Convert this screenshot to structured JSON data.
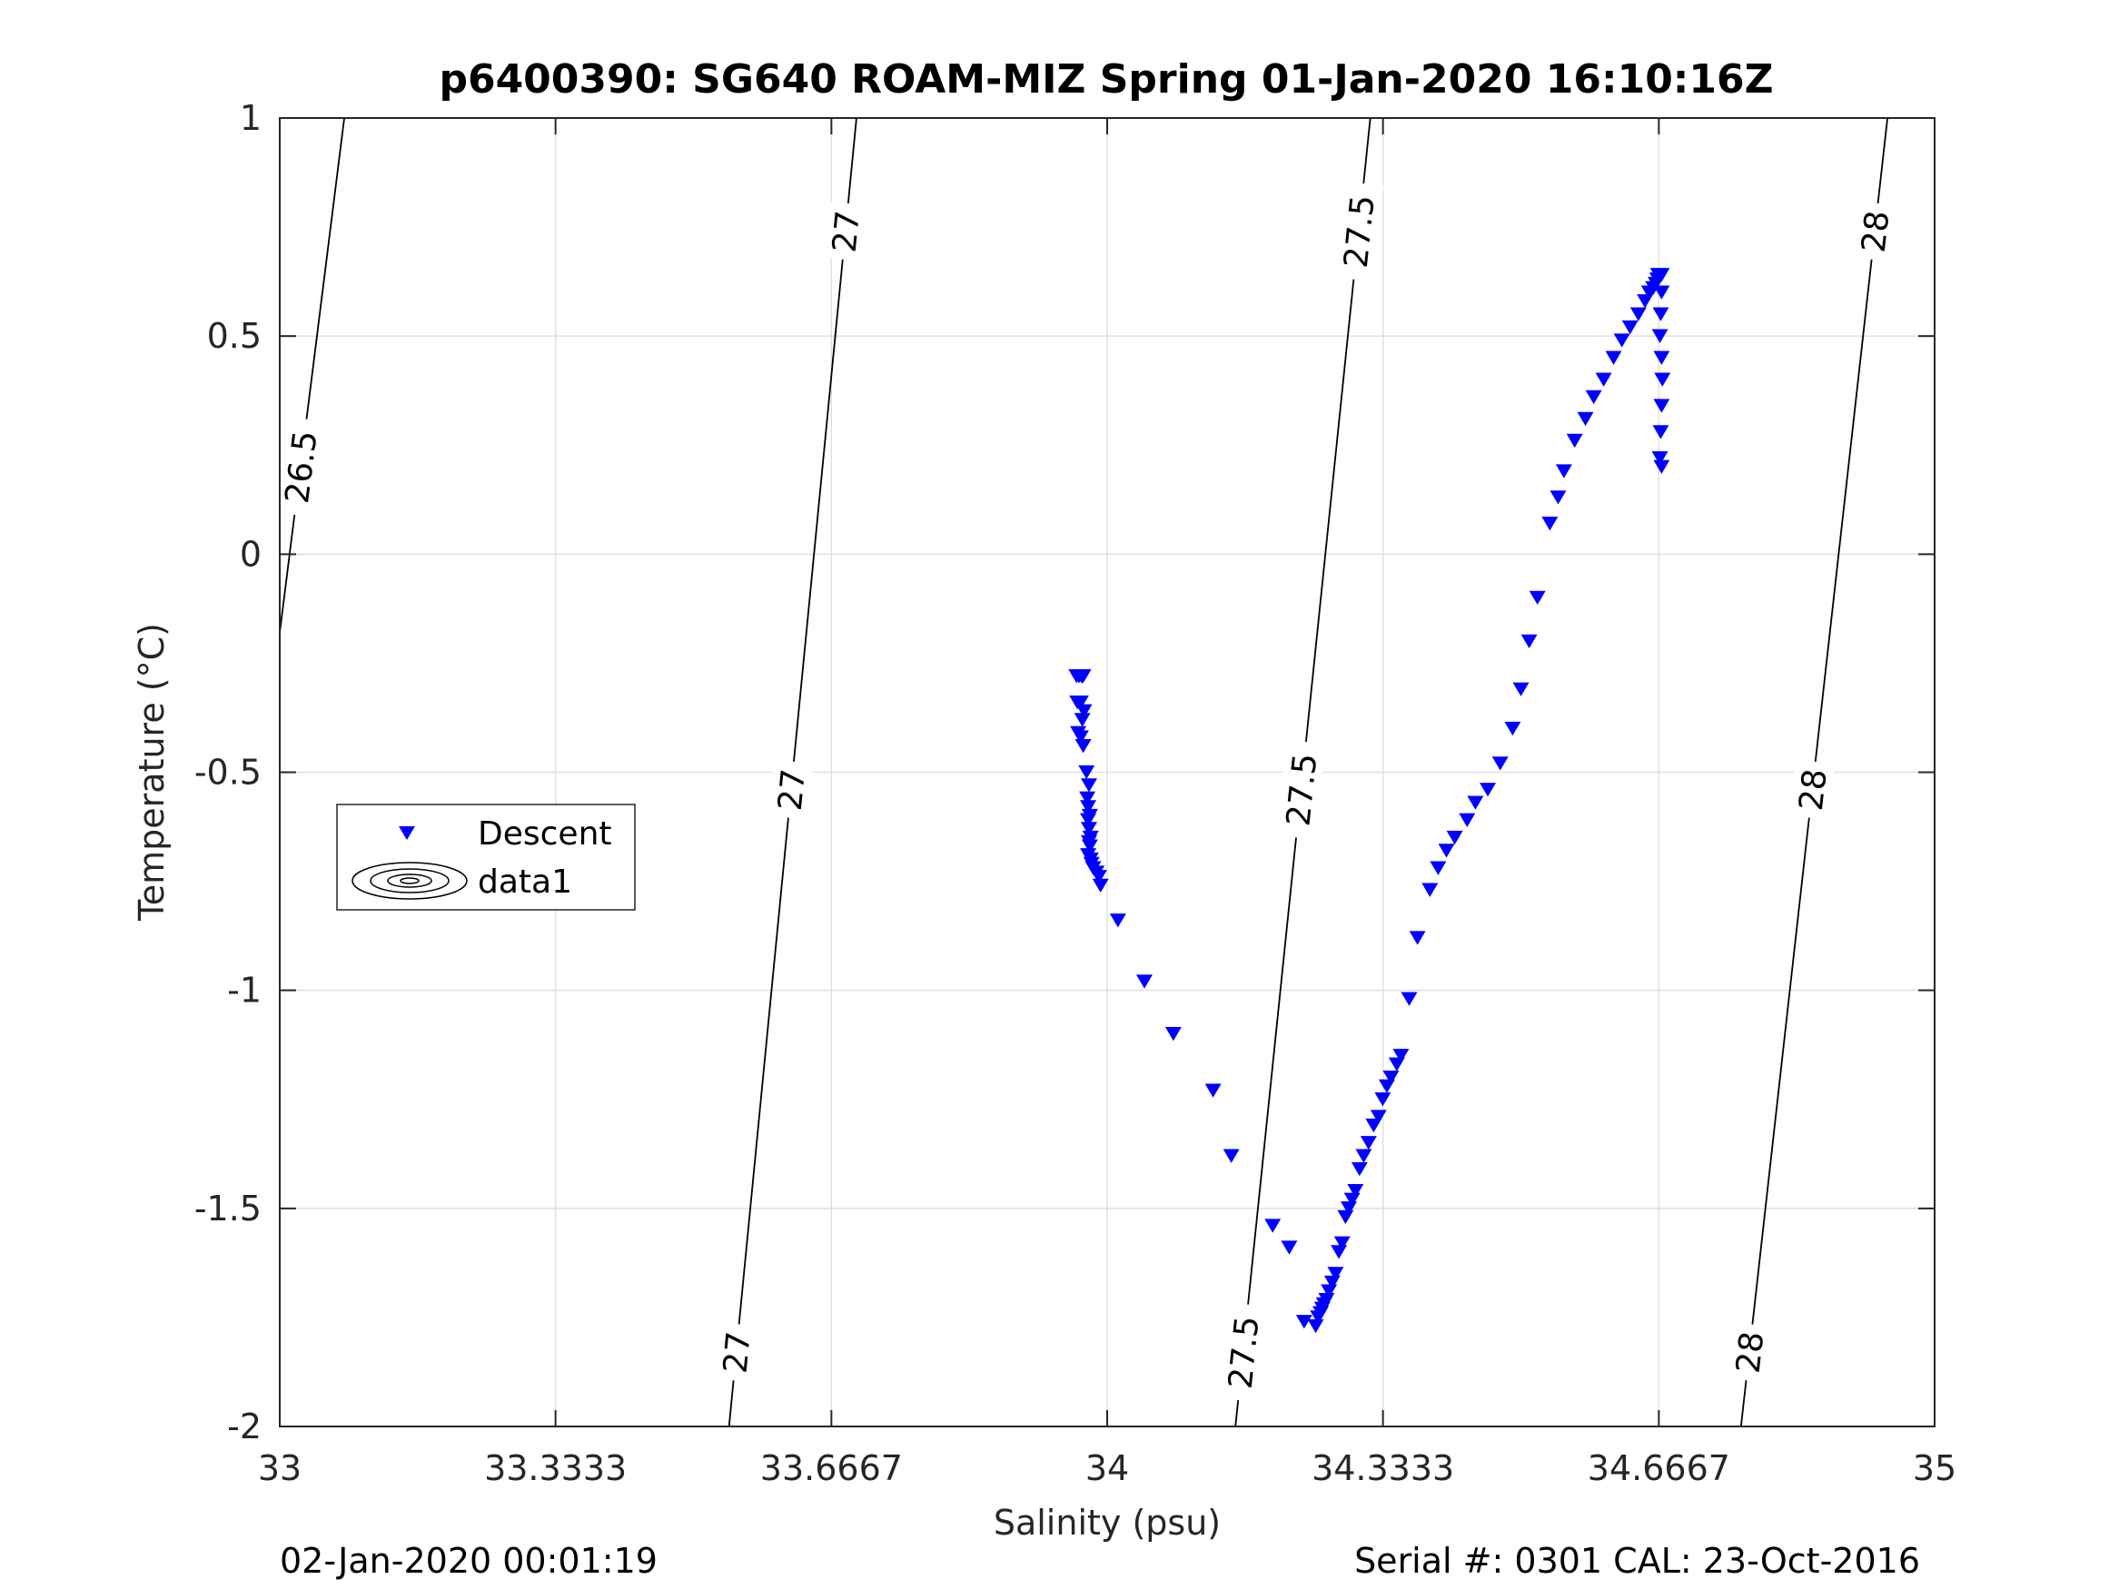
{
  "chart_data": {
    "type": "scatter",
    "title": "p6400390: SG640 ROAM-MIZ Spring 01-Jan-2020 16:10:16Z",
    "xlabel": "Salinity (psu)",
    "ylabel": "Temperature (°C)",
    "xlim": [
      33,
      35
    ],
    "ylim": [
      -2,
      1
    ],
    "xticks": [
      33,
      33.3333,
      33.6667,
      34,
      34.3333,
      34.6667,
      35
    ],
    "xtick_labels": [
      "33",
      "33.3333",
      "33.6667",
      "34",
      "34.3333",
      "34.6667",
      "35"
    ],
    "yticks": [
      -2,
      -1.5,
      -1,
      -0.5,
      0,
      0.5,
      1
    ],
    "ytick_labels": [
      "-2",
      "-1.5",
      "-1",
      "-0.5",
      "0",
      "0.5",
      "1"
    ],
    "grid": true,
    "legend_position": "left-middle",
    "legend": [
      "Descent",
      "data1"
    ],
    "footer_left": "02-Jan-2020 00:01:19",
    "footer_right": "Serial #: 0301  CAL: 23-Oct-2016",
    "series": [
      {
        "name": "Descent",
        "marker": "triangle-down",
        "color": "#0000ff",
        "x": [
          33.963,
          33.966,
          33.969,
          33.97,
          33.971,
          33.964,
          33.968,
          33.972,
          33.97,
          33.965,
          33.968,
          33.971,
          33.975,
          33.978,
          33.976,
          33.977,
          33.979,
          33.977,
          33.978,
          33.98,
          33.978,
          33.979,
          33.977,
          33.98,
          33.981,
          33.983,
          33.987,
          33.99,
          33.992,
          34.013,
          34.045,
          34.08,
          34.128,
          34.15,
          34.2,
          34.22,
          34.238,
          34.252,
          34.255,
          34.258,
          34.26,
          34.262,
          34.265,
          34.268,
          34.272,
          34.276,
          34.28,
          34.284,
          34.288,
          34.292,
          34.296,
          34.3,
          34.305,
          34.31,
          34.316,
          34.322,
          34.328,
          34.333,
          34.338,
          34.343,
          34.35,
          34.355,
          34.365,
          34.375,
          34.39,
          34.4,
          34.41,
          34.42,
          34.435,
          34.445,
          34.46,
          34.475,
          34.49,
          34.5,
          34.51,
          34.52,
          34.535,
          34.545,
          34.552,
          34.565,
          34.578,
          34.588,
          34.6,
          34.612,
          34.622,
          34.632,
          34.642,
          34.65,
          34.655,
          34.66,
          34.663,
          34.665,
          34.666,
          34.668,
          34.67,
          34.67,
          34.669,
          34.668,
          34.67,
          34.671,
          34.67,
          34.669,
          34.668,
          34.67
        ],
        "y": [
          -0.28,
          -0.28,
          -0.28,
          -0.28,
          -0.28,
          -0.34,
          -0.34,
          -0.36,
          -0.38,
          -0.41,
          -0.42,
          -0.44,
          -0.5,
          -0.53,
          -0.56,
          -0.58,
          -0.6,
          -0.61,
          -0.63,
          -0.65,
          -0.66,
          -0.67,
          -0.69,
          -0.7,
          -0.71,
          -0.72,
          -0.73,
          -0.74,
          -0.76,
          -0.84,
          -0.98,
          -1.1,
          -1.23,
          -1.38,
          -1.54,
          -1.59,
          -1.76,
          -1.77,
          -1.75,
          -1.74,
          -1.73,
          -1.72,
          -1.71,
          -1.69,
          -1.67,
          -1.65,
          -1.6,
          -1.58,
          -1.52,
          -1.5,
          -1.48,
          -1.46,
          -1.41,
          -1.38,
          -1.35,
          -1.31,
          -1.29,
          -1.25,
          -1.22,
          -1.2,
          -1.17,
          -1.15,
          -1.02,
          -0.88,
          -0.77,
          -0.72,
          -0.68,
          -0.65,
          -0.61,
          -0.57,
          -0.54,
          -0.48,
          -0.4,
          -0.31,
          -0.2,
          -0.1,
          0.07,
          0.13,
          0.19,
          0.26,
          0.31,
          0.36,
          0.4,
          0.45,
          0.49,
          0.52,
          0.55,
          0.58,
          0.6,
          0.61,
          0.62,
          0.63,
          0.64,
          0.64,
          0.64,
          0.6,
          0.55,
          0.5,
          0.45,
          0.4,
          0.34,
          0.28,
          0.22,
          0.2
        ]
      },
      {
        "name": "data1",
        "type": "contour",
        "color": "#000000",
        "levels": [
          26.5,
          27,
          27.5,
          28
        ],
        "isopycnals": [
          {
            "level": 26.5,
            "points": [
              [
                33.0,
                -0.18
              ],
              [
                33.078,
                1.0
              ]
            ]
          },
          {
            "level": 27,
            "points": [
              [
                33.543,
                -2.0
              ],
              [
                33.697,
                1.0
              ]
            ]
          },
          {
            "level": 27.5,
            "points": [
              [
                34.155,
                -2.0
              ],
              [
                34.318,
                1.0
              ]
            ]
          },
          {
            "level": 28,
            "points": [
              [
                34.766,
                -2.0
              ],
              [
                34.943,
                1.0
              ]
            ]
          }
        ],
        "contour_labels": [
          {
            "text": "26.5",
            "x": 33.025,
            "y": 0.2
          },
          {
            "text": "27",
            "x": 33.672,
            "y": 0.74
          },
          {
            "text": "27",
            "x": 33.61,
            "y": -0.54
          },
          {
            "text": "27",
            "x": 33.547,
            "y": -1.83
          },
          {
            "text": "27.5",
            "x": 34.299,
            "y": 0.74
          },
          {
            "text": "27.5",
            "x": 34.225,
            "y": -0.54
          },
          {
            "text": "27.5",
            "x": 34.163,
            "y": -1.83
          },
          {
            "text": "28",
            "x": 34.922,
            "y": 0.74
          },
          {
            "text": "28",
            "x": 34.841,
            "y": -0.54
          },
          {
            "text": "28",
            "x": 34.778,
            "y": -1.83
          }
        ]
      }
    ]
  }
}
